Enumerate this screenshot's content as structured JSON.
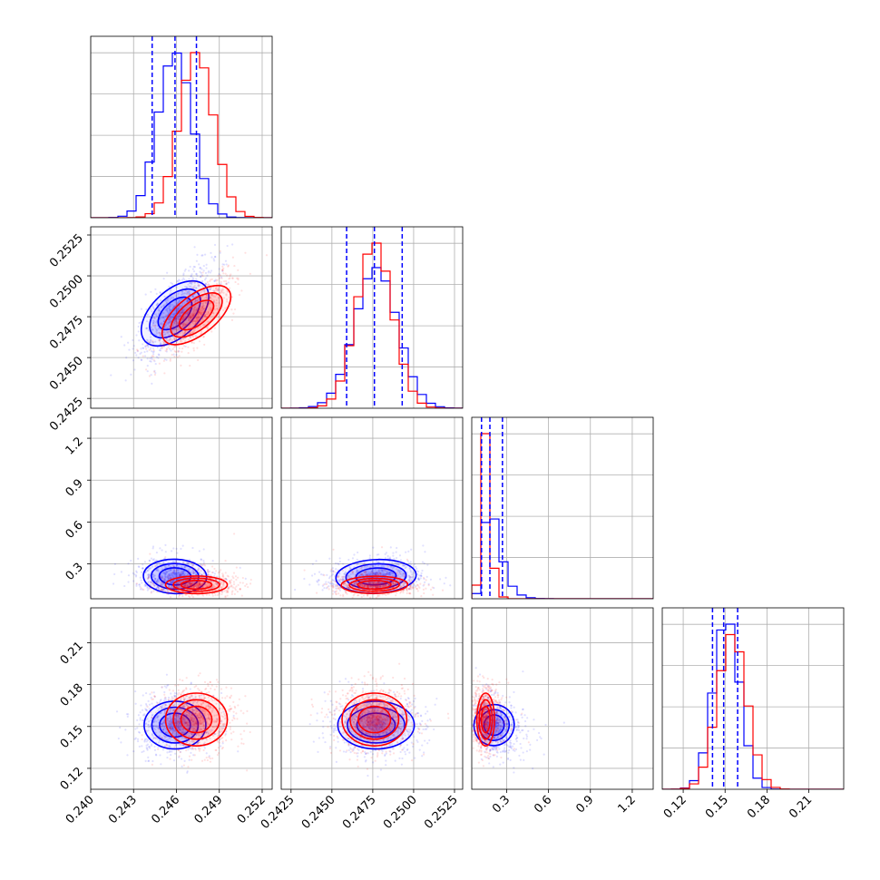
{
  "chart_data": {
    "type": "corner",
    "series": [
      {
        "name": "",
        "color": "#0000ff"
      },
      {
        "name": "",
        "color": "#ff0000"
      }
    ],
    "params": [
      {
        "ticks": [
          "0.240",
          "0.243",
          "0.246",
          "0.249",
          "0.252"
        ],
        "tick_values": [
          0.24,
          0.243,
          0.246,
          0.249,
          0.252
        ],
        "range": [
          0.24,
          0.2527
        ]
      },
      {
        "ticks": [
          "0.2425",
          "0.2450",
          "0.2475",
          "0.2500",
          "0.2525"
        ],
        "tick_values": [
          0.2425,
          0.245,
          0.2475,
          0.25,
          0.2525
        ],
        "range": [
          0.2419,
          0.253
        ]
      },
      {
        "ticks": [
          "0.3",
          "0.6",
          "0.9",
          "1.2"
        ],
        "tick_values": [
          0.3,
          0.6,
          0.9,
          1.2
        ],
        "range": [
          0.05,
          1.35
        ]
      },
      {
        "ticks": [
          "0.12",
          "0.15",
          "0.18",
          "0.21"
        ],
        "tick_values": [
          0.12,
          0.15,
          0.18,
          0.21
        ],
        "range": [
          0.105,
          0.235
        ]
      }
    ],
    "quantiles": [
      [
        0.2443,
        0.2459,
        0.2474
      ],
      [
        0.2459,
        0.2476,
        0.2493
      ],
      [
        0.12,
        0.18,
        0.27
      ],
      [
        0.141,
        0.149,
        0.159
      ]
    ],
    "fits": {
      "blue": {
        "mean": [
          0.2459,
          0.2477,
          0.21,
          0.151
        ],
        "sd": [
          0.0012,
          0.0013,
          0.07,
          0.0095
        ],
        "corr": {
          "0-1": 0.75,
          "0-2": -0.05,
          "0-3": 0.0,
          "1-2": 0.1,
          "1-3": 0.0,
          "2-3": -0.3
        }
      },
      "red": {
        "mean": [
          0.2474,
          0.2476,
          0.15,
          0.155
        ],
        "sd": [
          0.0012,
          0.0011,
          0.035,
          0.0105
        ],
        "corr": {
          "0-1": 0.75,
          "0-2": 0.0,
          "0-3": 0.0,
          "1-2": 0.05,
          "1-3": 0.0,
          "2-3": 0.0
        }
      }
    },
    "legend": "none",
    "grid": true
  }
}
